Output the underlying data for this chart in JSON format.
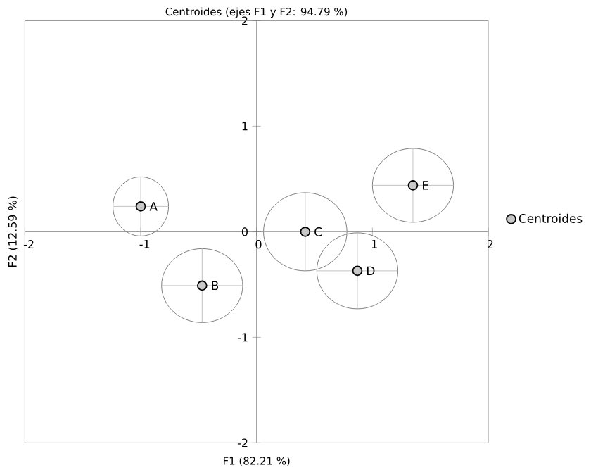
{
  "chart_data": {
    "type": "scatter",
    "title": "Centroides (ejes F1 y F2: 94.79 %)",
    "xlabel": "F1 (82.21 %)",
    "ylabel": "F2 (12.59 %)",
    "series": [
      {
        "name": "Centroides",
        "color": "#c8c8c8",
        "x": [
          -1.0,
          -0.47,
          0.42,
          0.87,
          1.35
        ],
        "values": [
          0.24,
          -0.51,
          0.0,
          -0.37,
          0.44
        ],
        "xerrors": [
          0.24,
          0.35,
          0.36,
          0.35,
          0.35
        ],
        "errors": [
          0.28,
          0.35,
          0.37,
          0.36,
          0.35
        ]
      }
    ],
    "annotations": [
      {
        "text": "A",
        "x": -1.0,
        "y": 0.24
      },
      {
        "text": "B",
        "x": -0.47,
        "y": -0.51
      },
      {
        "text": "C",
        "x": 0.42,
        "y": 0.0
      },
      {
        "text": "D",
        "x": 0.87,
        "y": -0.37
      },
      {
        "text": "E",
        "x": 1.35,
        "y": 0.44
      }
    ],
    "xlim": [
      -2,
      2
    ],
    "ylim": [
      -2,
      2
    ],
    "xticks": [
      -2,
      -1,
      0,
      1,
      2
    ],
    "yticks": [
      -2,
      -1,
      0,
      1,
      2
    ],
    "grid": false,
    "legend": "right",
    "marker": "circle"
  }
}
